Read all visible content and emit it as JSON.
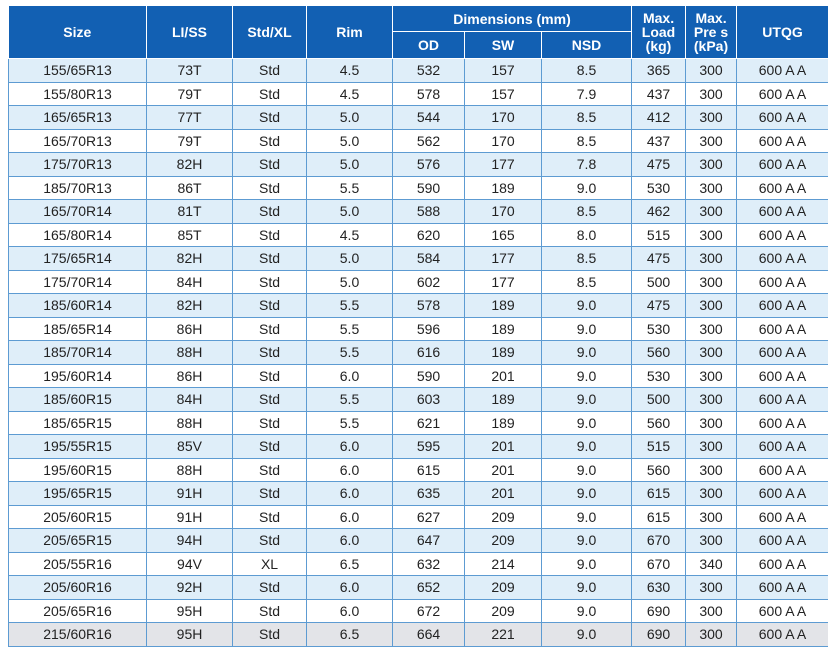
{
  "headers": {
    "size": "Size",
    "li_ss": "LI/SS",
    "std_xl": "Std/XL",
    "rim": "Rim",
    "dimensions": "Dimensions (mm)",
    "od": "OD",
    "sw": "SW",
    "nsd": "NSD",
    "max_load": "Max.\nLoad\n(kg)",
    "max_pres": "Max.\nPre s\n(kPa)",
    "utqg": "UTQG"
  },
  "rows": [
    [
      "155/65R13",
      "73T",
      "Std",
      "4.5",
      "532",
      "157",
      "8.5",
      "365",
      "300",
      "600 A A"
    ],
    [
      "155/80R13",
      "79T",
      "Std",
      "4.5",
      "578",
      "157",
      "7.9",
      "437",
      "300",
      "600 A A"
    ],
    [
      "165/65R13",
      "77T",
      "Std",
      "5.0",
      "544",
      "170",
      "8.5",
      "412",
      "300",
      "600 A A"
    ],
    [
      "165/70R13",
      "79T",
      "Std",
      "5.0",
      "562",
      "170",
      "8.5",
      "437",
      "300",
      "600 A A"
    ],
    [
      "175/70R13",
      "82H",
      "Std",
      "5.0",
      "576",
      "177",
      "7.8",
      "475",
      "300",
      "600 A A"
    ],
    [
      "185/70R13",
      "86T",
      "Std",
      "5.5",
      "590",
      "189",
      "9.0",
      "530",
      "300",
      "600 A A"
    ],
    [
      "165/70R14",
      "81T",
      "Std",
      "5.0",
      "588",
      "170",
      "8.5",
      "462",
      "300",
      "600 A A"
    ],
    [
      "165/80R14",
      "85T",
      "Std",
      "4.5",
      "620",
      "165",
      "8.0",
      "515",
      "300",
      "600 A A"
    ],
    [
      "175/65R14",
      "82H",
      "Std",
      "5.0",
      "584",
      "177",
      "8.5",
      "475",
      "300",
      "600 A A"
    ],
    [
      "175/70R14",
      "84H",
      "Std",
      "5.0",
      "602",
      "177",
      "8.5",
      "500",
      "300",
      "600 A A"
    ],
    [
      "185/60R14",
      "82H",
      "Std",
      "5.5",
      "578",
      "189",
      "9.0",
      "475",
      "300",
      "600 A A"
    ],
    [
      "185/65R14",
      "86H",
      "Std",
      "5.5",
      "596",
      "189",
      "9.0",
      "530",
      "300",
      "600 A A"
    ],
    [
      "185/70R14",
      "88H",
      "Std",
      "5.5",
      "616",
      "189",
      "9.0",
      "560",
      "300",
      "600 A A"
    ],
    [
      "195/60R14",
      "86H",
      "Std",
      "6.0",
      "590",
      "201",
      "9.0",
      "530",
      "300",
      "600 A A"
    ],
    [
      "185/60R15",
      "84H",
      "Std",
      "5.5",
      "603",
      "189",
      "9.0",
      "500",
      "300",
      "600 A A"
    ],
    [
      "185/65R15",
      "88H",
      "Std",
      "5.5",
      "621",
      "189",
      "9.0",
      "560",
      "300",
      "600 A A"
    ],
    [
      "195/55R15",
      "85V",
      "Std",
      "6.0",
      "595",
      "201",
      "9.0",
      "515",
      "300",
      "600 A A"
    ],
    [
      "195/60R15",
      "88H",
      "Std",
      "6.0",
      "615",
      "201",
      "9.0",
      "560",
      "300",
      "600 A A"
    ],
    [
      "195/65R15",
      "91H",
      "Std",
      "6.0",
      "635",
      "201",
      "9.0",
      "615",
      "300",
      "600 A A"
    ],
    [
      "205/60R15",
      "91H",
      "Std",
      "6.0",
      "627",
      "209",
      "9.0",
      "615",
      "300",
      "600 A A"
    ],
    [
      "205/65R15",
      "94H",
      "Std",
      "6.0",
      "647",
      "209",
      "9.0",
      "670",
      "300",
      "600 A A"
    ],
    [
      "205/55R16",
      "94V",
      "XL",
      "6.5",
      "632",
      "214",
      "9.0",
      "670",
      "340",
      "600 A A"
    ],
    [
      "205/60R16",
      "92H",
      "Std",
      "6.0",
      "652",
      "209",
      "9.0",
      "630",
      "300",
      "600 A A"
    ],
    [
      "205/65R16",
      "95H",
      "Std",
      "6.0",
      "672",
      "209",
      "9.0",
      "690",
      "300",
      "600 A A"
    ],
    [
      "215/60R16",
      "95H",
      "Std",
      "6.5",
      "664",
      "221",
      "9.0",
      "690",
      "300",
      "600 A A"
    ]
  ]
}
